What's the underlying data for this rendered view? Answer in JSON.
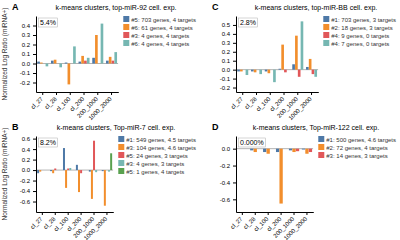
{
  "chart_data": [
    {
      "type": "bar",
      "title": "k-means clusters, top-miR-92 cell. exp.",
      "annotations": [
        "A",
        "5.4%"
      ],
      "ylabel": "Normalized Log Ratio (miRNA+)",
      "categories": [
        "cl_27",
        "cl_28",
        "cl_100",
        "cl_200",
        "200_1000",
        "1000_2000"
      ],
      "series": [
        {
          "name": "#5: 703 genes, 4 targets",
          "values": [
            0.02,
            0.03,
            0.01,
            0.02,
            0.06,
            0.03
          ]
        },
        {
          "name": "#6: 61 genes, 4 targets",
          "values": [
            0.01,
            0.04,
            -0.22,
            0.08,
            0.3,
            0.07
          ]
        },
        {
          "name": "#3: 4 genes, 4 targets",
          "values": [
            0.0,
            0.0,
            0.0,
            0.03,
            0.0,
            0.03
          ]
        },
        {
          "name": "#6: 4 genes, 4 targets",
          "values": [
            -0.03,
            -0.04,
            0.18,
            0.06,
            0.42,
            0.12
          ]
        }
      ],
      "ylim": [
        -0.3,
        0.5
      ],
      "yticks": [
        -0.2,
        -0.1,
        {
          "value": 0.0,
          "label": "0.0"
        },
        0.1,
        0.2,
        0.3,
        0.4
      ],
      "grid": false,
      "legend": "right"
    },
    {
      "type": "bar",
      "title": "k-means clusters, top-miR-BB cell. exp.",
      "annotations": [
        "C",
        "2.8%"
      ],
      "categories": [
        "cl_27",
        "cl_28",
        "cl_100",
        "cl_200",
        "200_1000",
        "1000_2000"
      ],
      "series": [
        {
          "name": "#1: 703 genes, 3 targets",
          "values": [
            -0.02,
            -0.02,
            -0.02,
            0.01,
            0.06,
            0.03
          ]
        },
        {
          "name": "#2: 18 genes, 3 targets",
          "values": [
            -0.02,
            -0.03,
            -0.04,
            0.28,
            0.38,
            0.12
          ]
        },
        {
          "name": "#4: 9 genes, 0 targets",
          "values": [
            0.0,
            0.0,
            0.0,
            -0.03,
            -0.08,
            -0.05
          ]
        },
        {
          "name": "#4: 7 genes, 0 targets",
          "values": [
            -0.06,
            -0.05,
            -0.14,
            0.0,
            0.54,
            -0.08
          ]
        }
      ],
      "ylim": [
        -0.25,
        0.6
      ],
      "yticks": [
        -0.2,
        -0.1,
        {
          "value": 0.0,
          "label": "0.0"
        },
        0.1,
        0.2,
        0.3,
        0.4,
        0.5
      ],
      "grid": false,
      "legend": "right"
    },
    {
      "type": "bar",
      "title": "k-means clusters, Top-miR-7 cell. exp.",
      "annotations": [
        "B",
        "8.2%"
      ],
      "ylabel": "Normalized Log Ratio (miRNA+)",
      "categories": [
        "cl_27",
        "cl_28",
        "cl_100",
        "cl_200",
        "200_1000",
        "1000_2000"
      ],
      "series": [
        {
          "name": "#1: 549 genes, 4.5 targets",
          "values": [
            -0.06,
            -0.02,
            0.42,
            0.1,
            -0.03,
            -0.02
          ]
        },
        {
          "name": "#3: 104 genes, 4.6 targets",
          "values": [
            -0.03,
            -0.06,
            -0.34,
            -0.42,
            -0.55,
            -0.68
          ]
        },
        {
          "name": "#5: 24 genes, 3 targets",
          "values": [
            0.0,
            0.03,
            0.03,
            -0.06,
            0.56,
            0.0
          ]
        },
        {
          "name": "#3: 4 genes, 3 targets",
          "values": [
            0.0,
            0.0,
            0.04,
            0.0,
            -0.04,
            -0.03
          ]
        },
        {
          "name": "#5: 1 genes, 4 targets",
          "values": [
            0.0,
            0.0,
            0.0,
            0.0,
            0.0,
            0.32
          ]
        }
      ],
      "ylim": [
        -0.8,
        0.65
      ],
      "yticks": [
        -0.6,
        -0.4,
        -0.2,
        {
          "value": 0.0,
          "label": "0.0"
        },
        0.2,
        0.4,
        0.6
      ],
      "grid": false,
      "legend": "right"
    },
    {
      "type": "bar",
      "title": "k-means clusters, Top-miR-122 cell. exp.",
      "annotations": [
        "D",
        "0.000%"
      ],
      "categories": [
        "cl_27",
        "cl_28",
        "cl_100",
        "cl_200",
        "200_1000",
        "1000_2000"
      ],
      "series": [
        {
          "name": "#1: 500 genes, 4.6 targets",
          "values": [
            0.0,
            -0.02,
            -0.04,
            -0.04,
            -0.02,
            -0.01
          ]
        },
        {
          "name": "#2: 72 genes, 4 targets",
          "values": [
            0.0,
            -0.04,
            -0.06,
            -0.65,
            -0.04,
            -0.06
          ]
        },
        {
          "name": "#3: 14 genes, 3 targets",
          "values": [
            0.0,
            0.0,
            0.0,
            0.0,
            -0.03,
            -0.04
          ]
        }
      ],
      "ylim": [
        -0.75,
        0.15
      ],
      "yticks": [
        -0.6,
        -0.4,
        -0.2,
        {
          "value": 0.0,
          "label": "0.0"
        }
      ],
      "grid": false,
      "legend": "right"
    }
  ]
}
